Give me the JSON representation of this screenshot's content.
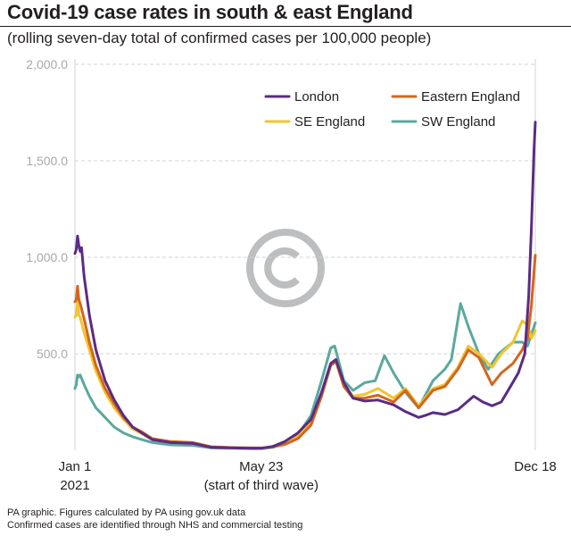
{
  "title": "Covid-19 case rates in south & east England",
  "subtitle": "(rolling seven-day total of confirmed cases per 100,000 people)",
  "footer": {
    "line1": "PA graphic. Figures calculated by PA using gov.uk data",
    "line2": "Confirmed cases are identified through NHS and commercial testing"
  },
  "colors": {
    "london": "#5b2c83",
    "eastern": "#d4661d",
    "se": "#f2c431",
    "sw": "#5ba89e",
    "axis_text": "#a7a9ac",
    "grid": "#d1d3d4",
    "watermark": "#bcbec0"
  },
  "watermark_icon": "copyright-icon",
  "chart_data": {
    "type": "line",
    "x_unit": "date (2021)",
    "ylim": [
      0,
      2000
    ],
    "yticks": [
      500,
      1000,
      1500,
      2000
    ],
    "ytick_labels": [
      "500.0",
      "1,000.0",
      "1,500.0",
      "2,000.0"
    ],
    "xtick_labels": [
      {
        "date": "2021-01-01",
        "line1": "Jan 1",
        "line2": "2021"
      },
      {
        "date": "2021-05-23",
        "line1": "May 23",
        "line2": "(start of third wave)"
      },
      {
        "date": "2021-12-18",
        "line1": "Dec 18",
        "line2": ""
      }
    ],
    "grid": "horizontal dashed",
    "legend_position": "top-right",
    "series": [
      {
        "name": "London",
        "color_key": "london",
        "points": [
          [
            "2021-01-01",
            1020
          ],
          [
            "2021-01-02",
            1040
          ],
          [
            "2021-01-03",
            1110
          ],
          [
            "2021-01-04",
            1060
          ],
          [
            "2021-01-05",
            1030
          ],
          [
            "2021-01-06",
            1050
          ],
          [
            "2021-01-08",
            900
          ],
          [
            "2021-01-12",
            700
          ],
          [
            "2021-01-17",
            520
          ],
          [
            "2021-01-24",
            360
          ],
          [
            "2021-01-31",
            260
          ],
          [
            "2021-02-07",
            180
          ],
          [
            "2021-02-14",
            120
          ],
          [
            "2021-02-21",
            90
          ],
          [
            "2021-03-01",
            55
          ],
          [
            "2021-03-15",
            40
          ],
          [
            "2021-04-01",
            35
          ],
          [
            "2021-04-15",
            15
          ],
          [
            "2021-05-01",
            12
          ],
          [
            "2021-05-15",
            10
          ],
          [
            "2021-05-23",
            10
          ],
          [
            "2021-06-01",
            20
          ],
          [
            "2021-06-10",
            45
          ],
          [
            "2021-06-20",
            90
          ],
          [
            "2021-06-30",
            160
          ],
          [
            "2021-07-08",
            300
          ],
          [
            "2021-07-15",
            450
          ],
          [
            "2021-07-19",
            470
          ],
          [
            "2021-07-25",
            350
          ],
          [
            "2021-08-01",
            270
          ],
          [
            "2021-08-10",
            255
          ],
          [
            "2021-08-20",
            260
          ],
          [
            "2021-09-01",
            235
          ],
          [
            "2021-09-10",
            200
          ],
          [
            "2021-09-20",
            170
          ],
          [
            "2021-09-25",
            180
          ],
          [
            "2021-10-01",
            195
          ],
          [
            "2021-10-10",
            185
          ],
          [
            "2021-10-20",
            210
          ],
          [
            "2021-11-01",
            280
          ],
          [
            "2021-11-08",
            250
          ],
          [
            "2021-11-15",
            230
          ],
          [
            "2021-11-22",
            250
          ],
          [
            "2021-11-29",
            330
          ],
          [
            "2021-12-05",
            400
          ],
          [
            "2021-12-10",
            500
          ],
          [
            "2021-12-13",
            800
          ],
          [
            "2021-12-15",
            1150
          ],
          [
            "2021-12-17",
            1550
          ],
          [
            "2021-12-18",
            1700
          ]
        ]
      },
      {
        "name": "Eastern England",
        "color_key": "eastern",
        "points": [
          [
            "2021-01-01",
            770
          ],
          [
            "2021-01-02",
            780
          ],
          [
            "2021-01-03",
            850
          ],
          [
            "2021-01-04",
            780
          ],
          [
            "2021-01-05",
            760
          ],
          [
            "2021-01-08",
            680
          ],
          [
            "2021-01-12",
            560
          ],
          [
            "2021-01-17",
            440
          ],
          [
            "2021-01-24",
            320
          ],
          [
            "2021-01-31",
            240
          ],
          [
            "2021-02-07",
            170
          ],
          [
            "2021-02-14",
            120
          ],
          [
            "2021-02-21",
            95
          ],
          [
            "2021-03-01",
            60
          ],
          [
            "2021-03-15",
            45
          ],
          [
            "2021-04-01",
            40
          ],
          [
            "2021-04-15",
            18
          ],
          [
            "2021-05-01",
            14
          ],
          [
            "2021-05-15",
            12
          ],
          [
            "2021-05-23",
            12
          ],
          [
            "2021-06-01",
            18
          ],
          [
            "2021-06-10",
            30
          ],
          [
            "2021-06-20",
            60
          ],
          [
            "2021-06-30",
            130
          ],
          [
            "2021-07-08",
            280
          ],
          [
            "2021-07-15",
            440
          ],
          [
            "2021-07-19",
            460
          ],
          [
            "2021-07-25",
            330
          ],
          [
            "2021-08-01",
            270
          ],
          [
            "2021-08-10",
            270
          ],
          [
            "2021-08-20",
            285
          ],
          [
            "2021-09-01",
            250
          ],
          [
            "2021-09-10",
            310
          ],
          [
            "2021-09-20",
            220
          ],
          [
            "2021-10-01",
            310
          ],
          [
            "2021-10-10",
            330
          ],
          [
            "2021-10-20",
            420
          ],
          [
            "2021-10-28",
            520
          ],
          [
            "2021-11-05",
            480
          ],
          [
            "2021-11-15",
            340
          ],
          [
            "2021-11-22",
            400
          ],
          [
            "2021-12-01",
            450
          ],
          [
            "2021-12-08",
            520
          ],
          [
            "2021-12-12",
            580
          ],
          [
            "2021-12-15",
            750
          ],
          [
            "2021-12-18",
            1010
          ]
        ]
      },
      {
        "name": "SE England",
        "color_key": "se",
        "points": [
          [
            "2021-01-01",
            690
          ],
          [
            "2021-01-02",
            700
          ],
          [
            "2021-01-03",
            770
          ],
          [
            "2021-01-04",
            700
          ],
          [
            "2021-01-05",
            690
          ],
          [
            "2021-01-08",
            610
          ],
          [
            "2021-01-12",
            520
          ],
          [
            "2021-01-17",
            410
          ],
          [
            "2021-01-24",
            300
          ],
          [
            "2021-01-31",
            220
          ],
          [
            "2021-02-07",
            160
          ],
          [
            "2021-02-14",
            110
          ],
          [
            "2021-02-21",
            85
          ],
          [
            "2021-03-01",
            55
          ],
          [
            "2021-03-15",
            40
          ],
          [
            "2021-04-01",
            35
          ],
          [
            "2021-04-15",
            15
          ],
          [
            "2021-05-01",
            12
          ],
          [
            "2021-05-15",
            10
          ],
          [
            "2021-05-23",
            10
          ],
          [
            "2021-06-01",
            18
          ],
          [
            "2021-06-10",
            35
          ],
          [
            "2021-06-20",
            70
          ],
          [
            "2021-06-30",
            150
          ],
          [
            "2021-07-08",
            290
          ],
          [
            "2021-07-15",
            440
          ],
          [
            "2021-07-19",
            460
          ],
          [
            "2021-07-25",
            340
          ],
          [
            "2021-08-01",
            280
          ],
          [
            "2021-08-10",
            290
          ],
          [
            "2021-08-20",
            320
          ],
          [
            "2021-09-01",
            270
          ],
          [
            "2021-09-10",
            320
          ],
          [
            "2021-09-20",
            230
          ],
          [
            "2021-10-01",
            320
          ],
          [
            "2021-10-10",
            340
          ],
          [
            "2021-10-20",
            430
          ],
          [
            "2021-10-28",
            540
          ],
          [
            "2021-11-05",
            500
          ],
          [
            "2021-11-15",
            430
          ],
          [
            "2021-11-22",
            500
          ],
          [
            "2021-12-01",
            560
          ],
          [
            "2021-12-08",
            670
          ],
          [
            "2021-12-12",
            650
          ],
          [
            "2021-12-15",
            580
          ],
          [
            "2021-12-18",
            620
          ]
        ]
      },
      {
        "name": "SW England",
        "color_key": "sw",
        "points": [
          [
            "2021-01-01",
            320
          ],
          [
            "2021-01-02",
            340
          ],
          [
            "2021-01-03",
            390
          ],
          [
            "2021-01-04",
            380
          ],
          [
            "2021-01-05",
            390
          ],
          [
            "2021-01-08",
            340
          ],
          [
            "2021-01-12",
            280
          ],
          [
            "2021-01-17",
            220
          ],
          [
            "2021-01-24",
            170
          ],
          [
            "2021-01-31",
            120
          ],
          [
            "2021-02-07",
            90
          ],
          [
            "2021-02-14",
            70
          ],
          [
            "2021-02-21",
            55
          ],
          [
            "2021-03-01",
            40
          ],
          [
            "2021-03-15",
            28
          ],
          [
            "2021-04-01",
            25
          ],
          [
            "2021-04-15",
            12
          ],
          [
            "2021-05-01",
            10
          ],
          [
            "2021-05-15",
            8
          ],
          [
            "2021-05-23",
            8
          ],
          [
            "2021-06-01",
            15
          ],
          [
            "2021-06-10",
            40
          ],
          [
            "2021-06-20",
            80
          ],
          [
            "2021-06-30",
            180
          ],
          [
            "2021-07-08",
            360
          ],
          [
            "2021-07-15",
            530
          ],
          [
            "2021-07-18",
            540
          ],
          [
            "2021-07-25",
            360
          ],
          [
            "2021-08-01",
            310
          ],
          [
            "2021-08-10",
            350
          ],
          [
            "2021-08-18",
            360
          ],
          [
            "2021-08-25",
            490
          ],
          [
            "2021-09-01",
            400
          ],
          [
            "2021-09-10",
            300
          ],
          [
            "2021-09-20",
            220
          ],
          [
            "2021-10-01",
            360
          ],
          [
            "2021-10-10",
            420
          ],
          [
            "2021-10-15",
            470
          ],
          [
            "2021-10-22",
            760
          ],
          [
            "2021-10-28",
            640
          ],
          [
            "2021-11-05",
            500
          ],
          [
            "2021-11-12",
            420
          ],
          [
            "2021-11-20",
            500
          ],
          [
            "2021-12-01",
            560
          ],
          [
            "2021-12-08",
            560
          ],
          [
            "2021-12-12",
            540
          ],
          [
            "2021-12-15",
            600
          ],
          [
            "2021-12-18",
            660
          ]
        ]
      }
    ]
  }
}
